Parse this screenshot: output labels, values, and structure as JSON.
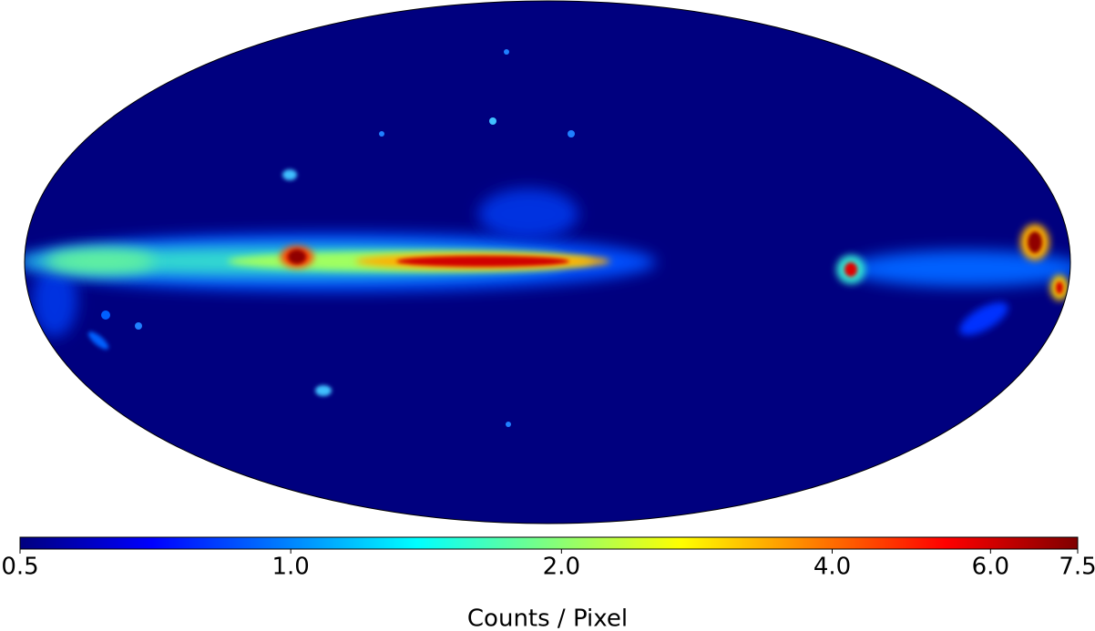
{
  "chart_data": {
    "type": "sky-map",
    "colorbar": {
      "label": "Counts / Pixel",
      "scale": "log",
      "lim": [
        0.5,
        7.5
      ],
      "ticks": [
        0.5,
        {
          "value": 1,
          "label": "1.0"
        },
        {
          "value": 2,
          "label": "2.0"
        },
        {
          "value": 4,
          "label": "4.0"
        },
        {
          "value": 6,
          "label": "6.0"
        },
        7.5
      ],
      "colormap": [
        "#00007f",
        "#0000ff",
        "#007fff",
        "#00ffff",
        "#7fff7f",
        "#ffff00",
        "#ff7f00",
        "#ff0000",
        "#7f0000"
      ]
    }
  }
}
